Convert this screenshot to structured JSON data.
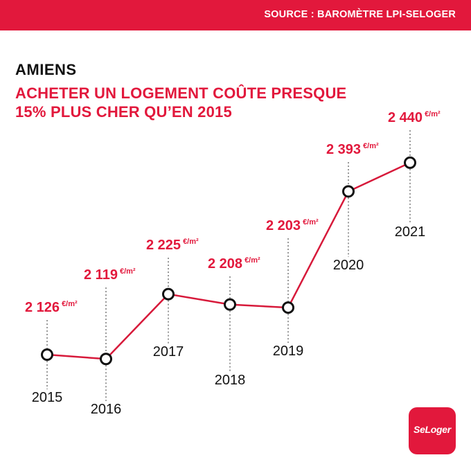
{
  "source": "SOURCE : BAROMÈTRE LPI-SELOGER",
  "city": "AMIENS",
  "headline": {
    "line1": "ACHETER UN LOGEMENT COÛTE PRESQUE",
    "line2": "15% PLUS CHER QU’EN 2015"
  },
  "logo_text": "SeLoger",
  "colors": {
    "accent": "#e2183c",
    "line": "#d7193a",
    "text": "#111111"
  },
  "chart_data": {
    "type": "line",
    "title": "ACHETER UN LOGEMENT COÛTE PRESQUE 15% PLUS CHER QU’EN 2015",
    "xlabel": "",
    "ylabel": "",
    "unit": "€/m²",
    "categories": [
      "2015",
      "2016",
      "2017",
      "2018",
      "2019",
      "2020",
      "2021"
    ],
    "values": [
      2126,
      2119,
      2225,
      2208,
      2203,
      2393,
      2440
    ],
    "value_labels": [
      "2 126",
      "2 119",
      "2 225",
      "2 208",
      "2 203",
      "2 393",
      "2 440"
    ],
    "grid": false,
    "legend": "none"
  }
}
